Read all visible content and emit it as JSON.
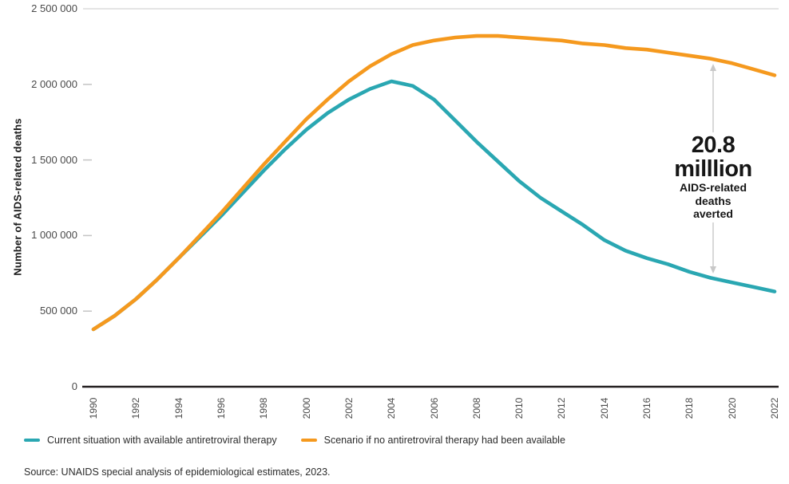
{
  "chart_data": {
    "type": "line",
    "title": "",
    "xlabel": "",
    "ylabel": "Number of AIDS-related deaths",
    "ylim": [
      0,
      2500000
    ],
    "xlim": [
      1990,
      2022
    ],
    "grid": "top-line-only",
    "legend_position": "bottom-left",
    "x": [
      1990,
      1991,
      1992,
      1993,
      1994,
      1995,
      1996,
      1997,
      1998,
      1999,
      2000,
      2001,
      2002,
      2003,
      2004,
      2005,
      2006,
      2007,
      2008,
      2009,
      2010,
      2011,
      2012,
      2013,
      2014,
      2015,
      2016,
      2017,
      2018,
      2019,
      2020,
      2021,
      2022
    ],
    "xtick_labels": [
      "1990",
      "1992",
      "1994",
      "1996",
      "1998",
      "2000",
      "2002",
      "2004",
      "2006",
      "2008",
      "2010",
      "2012",
      "2014",
      "2016",
      "2018",
      "2020",
      "2022"
    ],
    "yticks": [
      {
        "value": 0,
        "label": "0"
      },
      {
        "value": 500000,
        "label": "500 000"
      },
      {
        "value": 1000000,
        "label": "1 000 000"
      },
      {
        "value": 1500000,
        "label": "1 500 000"
      },
      {
        "value": 2000000,
        "label": "2 000 000"
      },
      {
        "value": 2500000,
        "label": "2 500 000"
      }
    ],
    "series": [
      {
        "name": "Current situation with available antiretroviral therapy",
        "color": "#2aa7b2",
        "values": [
          380000,
          470000,
          580000,
          710000,
          850000,
          990000,
          1130000,
          1280000,
          1430000,
          1570000,
          1700000,
          1810000,
          1900000,
          1970000,
          2020000,
          1990000,
          1900000,
          1760000,
          1620000,
          1490000,
          1360000,
          1250000,
          1160000,
          1070000,
          970000,
          900000,
          850000,
          810000,
          760000,
          720000,
          690000,
          660000,
          630000
        ]
      },
      {
        "name": "Scenario if no antiretroviral therapy had been available",
        "color": "#f5991e",
        "values": [
          380000,
          470000,
          580000,
          710000,
          850000,
          1000000,
          1150000,
          1310000,
          1470000,
          1620000,
          1770000,
          1900000,
          2020000,
          2120000,
          2200000,
          2260000,
          2290000,
          2310000,
          2320000,
          2320000,
          2310000,
          2300000,
          2290000,
          2270000,
          2260000,
          2240000,
          2230000,
          2210000,
          2190000,
          2170000,
          2140000,
          2100000,
          2060000
        ]
      }
    ]
  },
  "axis": {
    "y_title": "Number of AIDS-related deaths"
  },
  "annotation": {
    "line1": "20.8",
    "line2": "milllion",
    "line3": "AIDS-related",
    "line4": "deaths averted",
    "arrow_color": "#c8c8c8"
  },
  "legend": {
    "items": [
      {
        "label": "Current situation with available antiretroviral therapy",
        "color": "#2aa7b2"
      },
      {
        "label": "Scenario if no antiretroviral therapy had been available",
        "color": "#f5991e"
      }
    ]
  },
  "source": "Source: UNAIDS special analysis of epidemiological estimates, 2023.",
  "colors": {
    "teal": "#2aa7b2",
    "orange": "#f5991e",
    "axis": "#231f20",
    "tick": "#c4c4c4",
    "gridline": "#dcdcdc",
    "label_gray": "#4a4a4a"
  }
}
